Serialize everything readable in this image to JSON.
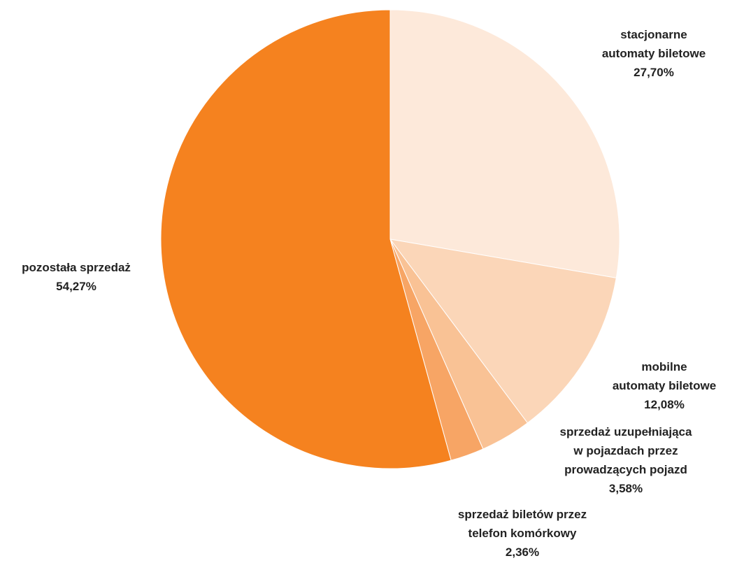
{
  "chart_data": {
    "type": "pie",
    "slices": [
      {
        "key": "stacjonarne",
        "label_lines": [
          "stacjonarne",
          "automaty biletowe"
        ],
        "value": 27.7,
        "value_label": "27,70%",
        "color": "#FDE9DA"
      },
      {
        "key": "mobilne",
        "label_lines": [
          "mobilne",
          "automaty biletowe"
        ],
        "value": 12.08,
        "value_label": "12,08%",
        "color": "#FBD6B8"
      },
      {
        "key": "uzupelniajaca",
        "label_lines": [
          "sprzedaż uzupełniająca",
          "w pojazdach przez",
          "prowadzących pojazd"
        ],
        "value": 3.58,
        "value_label": "3,58%",
        "color": "#F9C295"
      },
      {
        "key": "telefon",
        "label_lines": [
          "sprzedaż biletów przez",
          "telefon komórkowy"
        ],
        "value": 2.36,
        "value_label": "2,36%",
        "color": "#F7A565"
      },
      {
        "key": "pozostala",
        "label_lines": [
          "pozostała sprzedaż"
        ],
        "value": 54.27,
        "value_label": "54,27%",
        "color": "#F5821F"
      }
    ],
    "start_angle": "12 o'clock",
    "direction": "clockwise",
    "legend": "none (labels beside slices)"
  }
}
